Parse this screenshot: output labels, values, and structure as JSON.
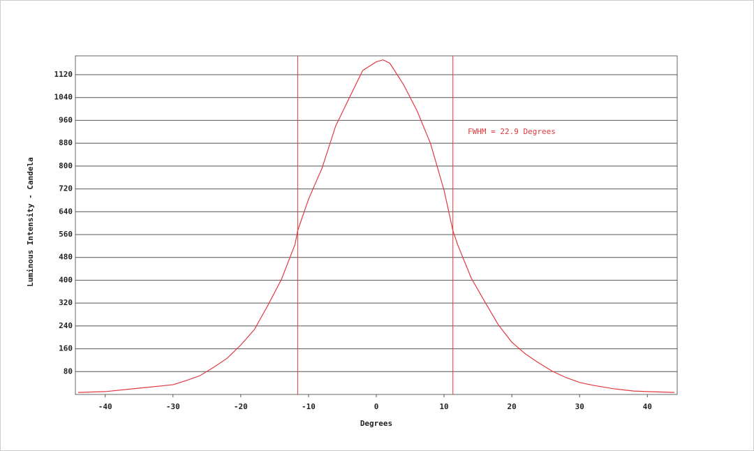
{
  "chart_data": {
    "type": "line",
    "xlabel": "Degrees",
    "ylabel": "Luminous Intensity - Candela",
    "annotation": "FWHM = 22.9 Degrees",
    "x": [
      -44,
      -40,
      -35,
      -30,
      -28,
      -26,
      -24,
      -22,
      -20,
      -18,
      -16,
      -14,
      -12,
      -11.6,
      -10,
      -8,
      -6,
      -4,
      -2,
      0,
      1,
      2,
      4,
      6,
      8,
      10,
      11.3,
      12,
      14,
      16,
      18,
      20,
      22,
      24,
      26,
      28,
      30,
      32,
      35,
      38,
      40,
      44
    ],
    "series": [
      {
        "color": "#e0393e",
        "values": [
          7,
          10,
          22,
          34,
          49,
          66,
          95,
          127,
          173,
          227,
          312,
          403,
          525,
          574,
          684,
          793,
          940,
          1038,
          1135,
          1165,
          1172,
          1160,
          1086,
          994,
          879,
          715,
          574,
          525,
          408,
          325,
          244,
          183,
          142,
          110,
          81,
          59,
          42,
          32,
          20,
          12,
          10,
          7
        ]
      }
    ],
    "fwhm_lines": [
      -11.6,
      11.3
    ],
    "xlim": [
      -44.4,
      44.4
    ],
    "ylim": [
      0,
      1186
    ],
    "xticks": [
      -40,
      -30,
      -20,
      -10,
      0,
      10,
      20,
      30,
      40
    ],
    "yticks": [
      80,
      160,
      240,
      320,
      400,
      480,
      560,
      640,
      720,
      800,
      880,
      960,
      1040,
      1120
    ],
    "grid": true
  }
}
